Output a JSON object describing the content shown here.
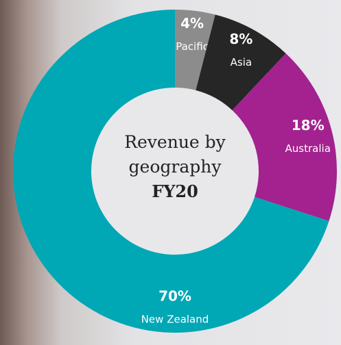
{
  "chart_data": {
    "type": "donut",
    "title": "Revenue by geography",
    "subtitle": "FY20",
    "categories": [
      "Pacific",
      "Asia",
      "Australia",
      "New Zealand"
    ],
    "values": [
      4,
      8,
      18,
      70
    ],
    "value_labels": [
      "4%",
      "8%",
      "18%",
      "70%"
    ],
    "colors": [
      "#8c8c8c",
      "#262626",
      "#a3228f",
      "#00a7b5"
    ]
  }
}
